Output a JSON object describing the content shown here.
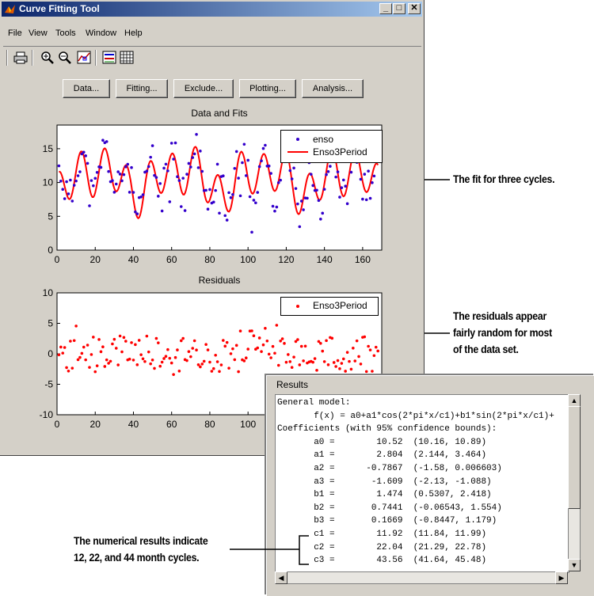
{
  "window": {
    "title": "Curve Fitting Tool",
    "titlebar_buttons": [
      "_",
      "□",
      "✕"
    ]
  },
  "menu": [
    "File",
    "View",
    "Tools",
    "Window",
    "Help"
  ],
  "toolbar": {
    "icons": [
      "print-icon",
      "zoom-in-icon",
      "zoom-out-icon",
      "data-cursor-icon",
      "legend-icon",
      "grid-icon"
    ]
  },
  "buttons": [
    "Data...",
    "Fitting...",
    "Exclude...",
    "Plotting...",
    "Analysis..."
  ],
  "plots": {
    "fits_title": "Data and Fits",
    "residuals_title": "Residuals",
    "legend_data": "enso",
    "legend_fit": "Enso3Period",
    "legend_resid": "Enso3Period",
    "fits_yticks": [
      "0",
      "5",
      "10",
      "15"
    ],
    "resid_yticks": [
      "-10",
      "-5",
      "0",
      "5",
      "10"
    ],
    "xticks": [
      "0",
      "20",
      "40",
      "60",
      "80",
      "100",
      "120",
      "140",
      "160"
    ]
  },
  "results": {
    "title": "Results",
    "lines": [
      "General model:",
      "       f(x) = a0+a1*cos(2*pi*x/c1)+b1*sin(2*pi*x/c1)+",
      "Coefficients (with 95% confidence bounds):",
      "       a0 =        10.52  (10.16, 10.89)",
      "       a1 =        2.804  (2.144, 3.464)",
      "       a2 =      -0.7867  (-1.58, 0.006603)",
      "       a3 =       -1.609  (-2.13, -1.088)",
      "       b1 =        1.474  (0.5307, 2.418)",
      "       b2 =       0.7441  (-0.06543, 1.554)",
      "       b3 =       0.1669  (-0.8447, 1.179)",
      "       c1 =        11.92  (11.84, 11.99)",
      "       c2 =        22.04  (21.29, 22.78)",
      "       c3 =        43.56  (41.64, 45.48)"
    ]
  },
  "callouts": {
    "fit": "The fit for three cycles.",
    "resid_1": "The residuals appear",
    "resid_2": "fairly random for most",
    "resid_3": "of the data set.",
    "num_1": "The numerical results indicate",
    "num_2": "12, 22, and 44 month cycles."
  },
  "colors": {
    "data_points": "#3300cc",
    "fit_line": "#ff0000",
    "residual_points": "#ff0000",
    "titlebar": "#0a246a"
  }
}
